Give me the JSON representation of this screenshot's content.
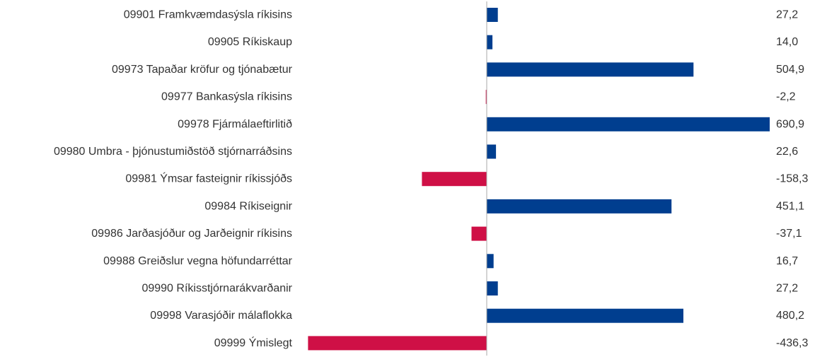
{
  "chart_data": {
    "type": "bar",
    "orientation": "horizontal",
    "categories": [
      "09901 Framkvæmdasýsla ríkisins",
      "09905 Ríkiskaup",
      "09973 Tapaðar kröfur og tjónabætur",
      "09977 Bankasýsla ríkisins",
      "09978 Fjármálaeftirlitið",
      "09980 Umbra - þjónustumiðstöð stjórnarráðsins",
      "09981 Ýmsar fasteignir ríkissjóðs",
      "09984 Ríkiseignir",
      "09986 Jarðasjóður og Jarðeignir ríkisins",
      "09988 Greiðslur vegna höfundarréttar",
      "09990 Ríkisstjórnarákvarðanir",
      "09998 Varasjóðir málaflokka",
      "09999 Ýmislegt"
    ],
    "values": [
      27.2,
      14.0,
      504.9,
      -2.2,
      690.9,
      22.6,
      -158.3,
      451.1,
      -37.1,
      16.7,
      27.2,
      480.2,
      -436.3
    ],
    "value_labels": [
      "27,2",
      "14,0",
      "504,9",
      "-2,2",
      "690,9",
      "22,6",
      "-158,3",
      "451,1",
      "-37,1",
      "16,7",
      "27,2",
      "480,2",
      "-436,3"
    ],
    "xlim": [
      -436.3,
      690.9
    ],
    "grid": false,
    "legend": "none",
    "colors": {
      "positive": "#003e8f",
      "negative": "#cf1046",
      "axis": "#aaaaaa",
      "text": "#333333"
    }
  }
}
